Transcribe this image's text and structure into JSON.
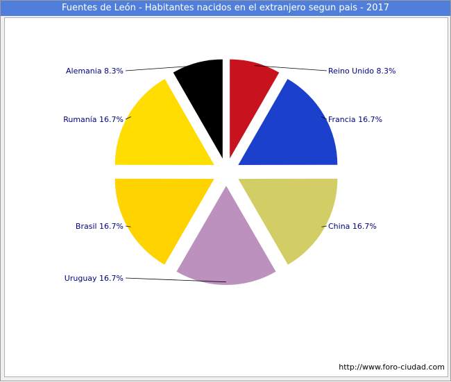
{
  "header": {
    "title": "Fuentes de León - Habitantes nacidos en el extranjero segun pais - 2017"
  },
  "footer": {
    "url": "http://www.foro-ciudad.com"
  },
  "chart_data": {
    "type": "pie",
    "title": "Fuentes de León - Habitantes nacidos en el extranjero segun pais - 2017",
    "slices": [
      {
        "label": "Reino Unido 8.3%",
        "value": 8.3,
        "color": "#c8121e"
      },
      {
        "label": "Francia 16.7%",
        "value": 16.7,
        "color": "#1b40cc"
      },
      {
        "label": "China 16.7%",
        "value": 16.7,
        "color": "#d3cd66"
      },
      {
        "label": "Uruguay 16.7%",
        "value": 16.7,
        "color": "#bc91bd"
      },
      {
        "label": "Brasil 16.7%",
        "value": 16.7,
        "color": "#ffd300"
      },
      {
        "label": "Rumanía 16.7%",
        "value": 16.7,
        "color": "#ffdd00"
      },
      {
        "label": "Alemania 8.3%",
        "value": 8.3,
        "color": "#000000"
      }
    ],
    "label_color": "#000080"
  }
}
